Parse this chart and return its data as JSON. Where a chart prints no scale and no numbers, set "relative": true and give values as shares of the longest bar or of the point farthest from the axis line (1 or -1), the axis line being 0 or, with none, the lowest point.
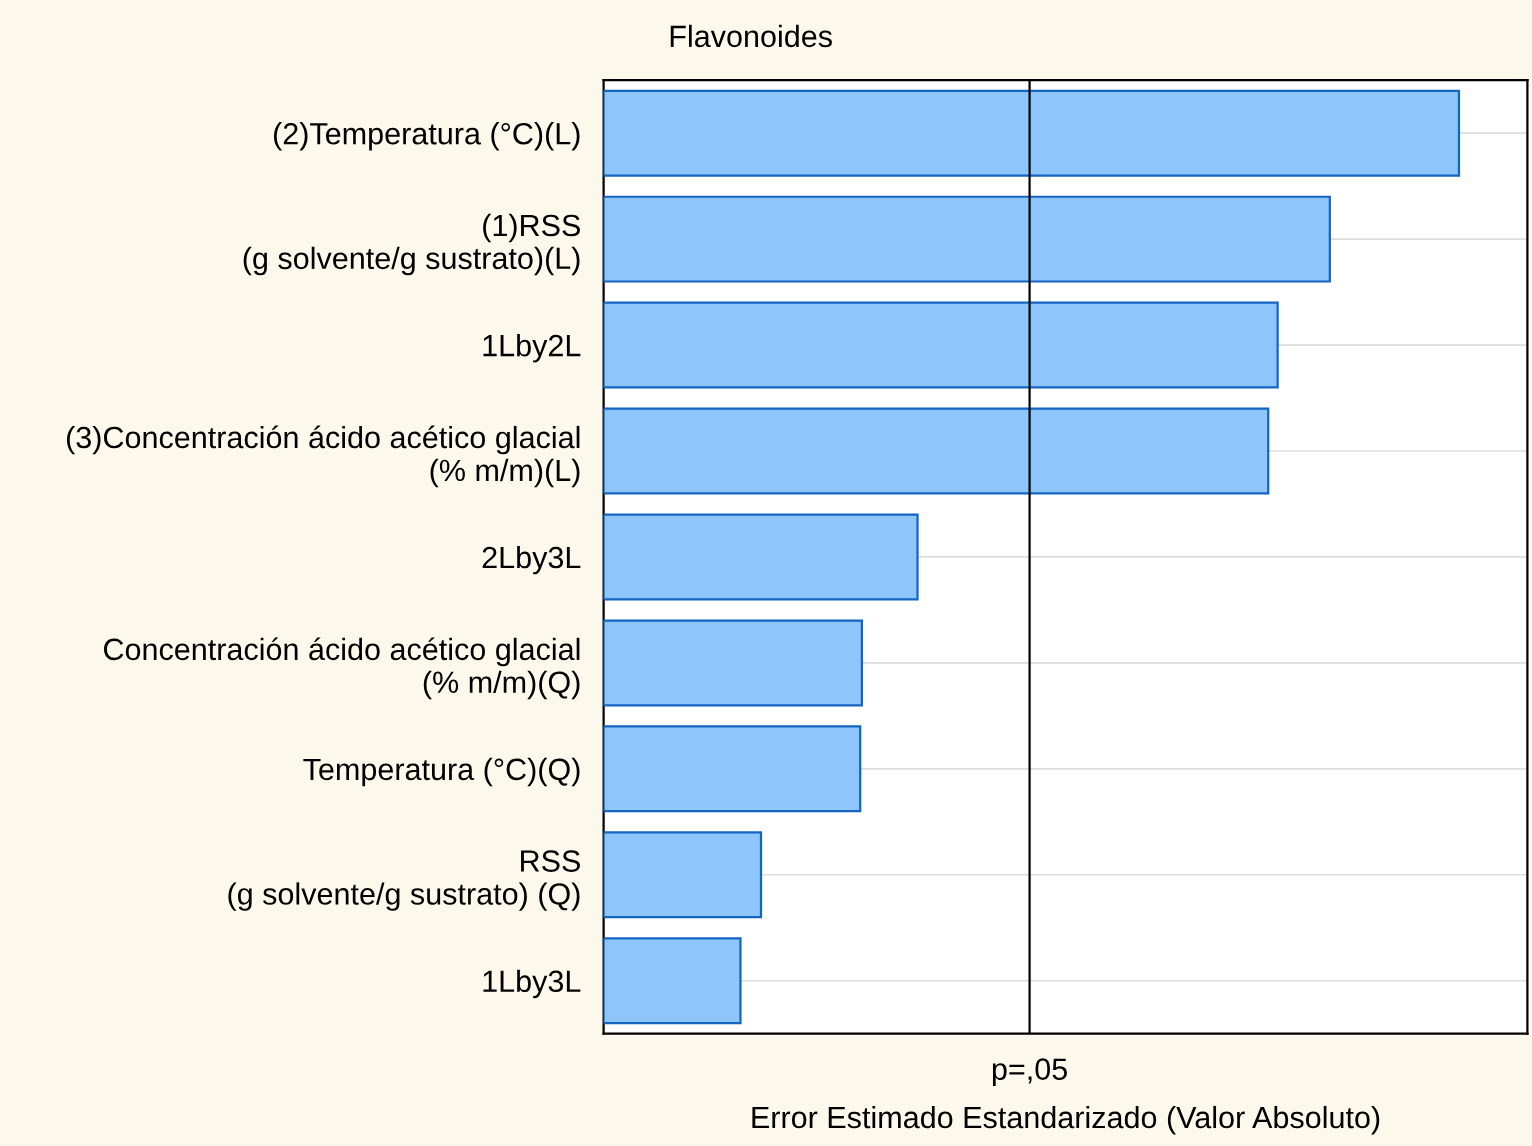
{
  "chart_data": {
    "type": "bar",
    "orientation": "horizontal",
    "relative": true,
    "title": "Flavonoides",
    "xlabel": "Error Estimado Estandarizado (Valor Absoluto)",
    "categories": [
      "(2)Temperatura (°C)(L)",
      "(1)RSS\n(g solvente/g sustrato)(L)",
      "1Lby2L",
      "(3)Concentración ácido acético glacial\n(% m/m)(L)",
      "2Lby3L",
      "Concentración ácido acético glacial\n(% m/m)(Q)",
      "Temperatura (°C)(Q)",
      "RSS\n(g solvente/g sustrato) (Q)",
      "1Lby3L"
    ],
    "values": [
      1,
      0.849,
      0.788,
      0.777,
      0.367,
      0.302,
      0.3,
      0.184,
      0.16
    ],
    "color": "#8ec5fa",
    "ref_lines": [
      {
        "axis": "x",
        "value": 0.498,
        "label": "p=,05",
        "color": "#000000"
      }
    ],
    "grid": "y",
    "legend": false
  }
}
